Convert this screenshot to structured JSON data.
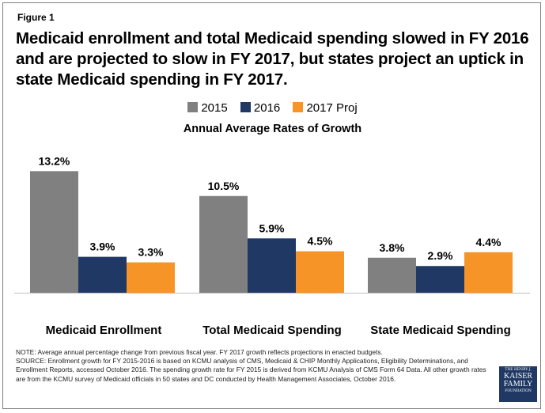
{
  "figure_label": "Figure 1",
  "title": "Medicaid enrollment and total Medicaid spending slowed in FY 2016 and are projected to slow in FY 2017, but states project an uptick in state Medicaid spending in FY 2017.",
  "colors": {
    "2015": "#808080",
    "2016": "#1f3864",
    "2017 Proj": "#f79428"
  },
  "chart_data": {
    "type": "bar",
    "title": "Annual Average Rates of Growth",
    "categories": [
      "Medicaid Enrollment",
      "Total Medicaid Spending",
      "State Medicaid Spending"
    ],
    "series": [
      {
        "name": "2015",
        "values": [
          13.2,
          10.5,
          3.8
        ],
        "labels": [
          "13.2%",
          "10.5%",
          "3.8%"
        ]
      },
      {
        "name": "2016",
        "values": [
          3.9,
          5.9,
          2.9
        ],
        "labels": [
          "3.9%",
          "5.9%",
          "2.9%"
        ]
      },
      {
        "name": "2017 Proj",
        "values": [
          3.3,
          4.5,
          4.4
        ],
        "labels": [
          "3.3%",
          "4.5%",
          "4.4%"
        ]
      }
    ],
    "ylim": [
      0,
      14
    ],
    "xlabel": "",
    "ylabel": "",
    "legend": "top-center",
    "grid": false
  },
  "notes": {
    "note": "NOTE: Average annual percentage change from previous fiscal year. FY 2017 growth reflects projections in enacted budgets.",
    "source": "SOURCE: Enrollment growth for FY 2015-2016 is based on KCMU analysis of CMS, Medicaid & CHIP Monthly Applications, Eligibility Determinations, and Enrollment Reports, accessed October 2016. The spending growth rate for FY 2015 is derived from KCMU Analysis of CMS Form 64 Data. All other growth rates are from the KCMU survey of Medicaid officials in 50 states and DC conducted by Health Management Associates, October 2016."
  },
  "logo": {
    "line1": "THE HENRY J.",
    "line2": "KAISER",
    "line3": "FAMILY",
    "line4": "FOUNDATION"
  }
}
